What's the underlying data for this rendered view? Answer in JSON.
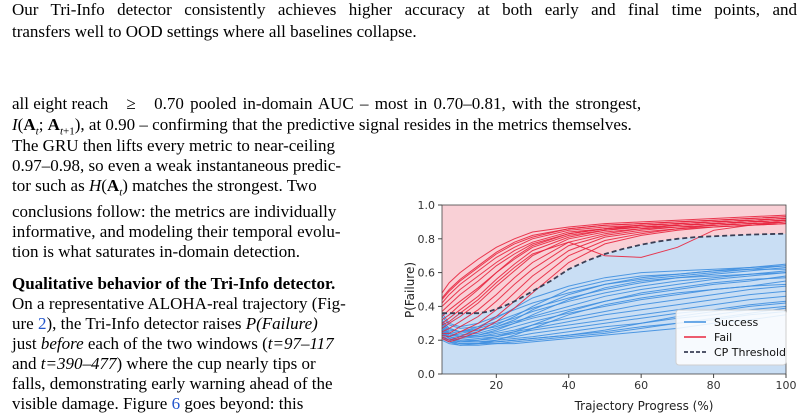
{
  "paper": {
    "top_line1": "Our Tri-Info detector consistently achieves higher accuracy at both early and final time points, and",
    "top_line2": "transfers well to OOD settings where all baselines collapse.",
    "para1_line1_a": "all eight reach",
    "para1_line1_sym": "≥",
    "para1_line1_b": "0.70 pooled in-domain AUC – most in 0.70–0.81, with the strongest,",
    "para1_line2_math": "I(A",
    "para1_line2_rest": "), at 0.90 – confirming that the predictive signal resides in the metrics themselves.",
    "col_lines": [
      "The GRU then lifts every metric to near-ceiling",
      "0.97–0.98, so even a weak instantaneous predic-",
      "tor such as H(A",
      "conclusions follow: the metrics are individually",
      "informative, and modeling their temporal evolu-",
      "tion is what saturates in-domain detection."
    ],
    "col_line3_rest": ") matches the strongest. Two",
    "qual_heading": "Qualitative behavior of the Tri-Info detector.",
    "qual_lines": [
      "On a representative ALOHA-real trajectory (Fig-",
      "ure",
      "), the Tri-Info detector raises",
      "just",
      "before",
      "each of the two windows (",
      "and",
      ") where the cup nearly tips or",
      "falls, demonstrating early warning ahead of the",
      "visible damage. Figure",
      "goes beyond: this"
    ],
    "fig_ref_2": "2",
    "fig_ref_6": "6",
    "pfailure": "P(Failure)",
    "window1": "t=97–117",
    "window2": "t=390–477"
  },
  "chart_data": {
    "type": "line",
    "xlabel": "Trajectory Progress (%)",
    "ylabel": "P(Failure)",
    "xlim": [
      5,
      100
    ],
    "ylim": [
      0,
      1.0
    ],
    "xticks": [
      "20",
      "40",
      "60",
      "80",
      "100"
    ],
    "yticks": [
      "0.0",
      "0.2",
      "0.4",
      "0.6",
      "0.8",
      "1.0"
    ],
    "legend_position": "bottom-right",
    "legend": [
      "Success",
      "Fail",
      "CP Threshold"
    ],
    "colors": {
      "success": "#3f8fe0",
      "fail": "#e8263f",
      "threshold": "#3a3f55",
      "fill_top": "#f9d0d6",
      "fill_bottom": "#c9def4"
    },
    "threshold": {
      "x": [
        5,
        10,
        15,
        18,
        22,
        26,
        30,
        35,
        40,
        45,
        50,
        55,
        60,
        65,
        70,
        75,
        80,
        85,
        90,
        95,
        100
      ],
      "y": [
        0.36,
        0.36,
        0.36,
        0.37,
        0.4,
        0.44,
        0.49,
        0.55,
        0.62,
        0.67,
        0.71,
        0.74,
        0.765,
        0.785,
        0.8,
        0.81,
        0.815,
        0.82,
        0.825,
        0.828,
        0.83
      ]
    },
    "x": [
      5,
      7,
      10,
      15,
      20,
      25,
      30,
      40,
      50,
      60,
      70,
      80,
      90,
      100
    ],
    "series_success": [
      [
        0.36,
        0.3,
        0.28,
        0.3,
        0.34,
        0.38,
        0.42,
        0.48,
        0.53,
        0.56,
        0.58,
        0.6,
        0.62,
        0.64
      ],
      [
        0.34,
        0.29,
        0.27,
        0.28,
        0.31,
        0.35,
        0.39,
        0.45,
        0.5,
        0.54,
        0.57,
        0.59,
        0.61,
        0.63
      ],
      [
        0.32,
        0.27,
        0.25,
        0.27,
        0.3,
        0.33,
        0.37,
        0.43,
        0.48,
        0.52,
        0.55,
        0.57,
        0.59,
        0.61
      ],
      [
        0.3,
        0.25,
        0.24,
        0.26,
        0.28,
        0.31,
        0.34,
        0.4,
        0.46,
        0.5,
        0.53,
        0.56,
        0.58,
        0.6
      ],
      [
        0.29,
        0.24,
        0.23,
        0.24,
        0.27,
        0.3,
        0.33,
        0.38,
        0.43,
        0.47,
        0.5,
        0.53,
        0.55,
        0.58
      ],
      [
        0.28,
        0.24,
        0.22,
        0.23,
        0.25,
        0.28,
        0.31,
        0.36,
        0.4,
        0.44,
        0.47,
        0.5,
        0.52,
        0.55
      ],
      [
        0.27,
        0.23,
        0.22,
        0.22,
        0.24,
        0.26,
        0.29,
        0.33,
        0.37,
        0.41,
        0.44,
        0.47,
        0.5,
        0.52
      ],
      [
        0.26,
        0.22,
        0.21,
        0.22,
        0.23,
        0.25,
        0.27,
        0.31,
        0.35,
        0.38,
        0.41,
        0.44,
        0.47,
        0.49
      ],
      [
        0.25,
        0.22,
        0.2,
        0.21,
        0.22,
        0.24,
        0.26,
        0.29,
        0.32,
        0.35,
        0.38,
        0.41,
        0.44,
        0.46
      ],
      [
        0.25,
        0.21,
        0.2,
        0.2,
        0.21,
        0.22,
        0.24,
        0.27,
        0.3,
        0.33,
        0.36,
        0.38,
        0.41,
        0.43
      ],
      [
        0.24,
        0.21,
        0.19,
        0.19,
        0.2,
        0.21,
        0.22,
        0.25,
        0.28,
        0.3,
        0.33,
        0.35,
        0.38,
        0.4
      ],
      [
        0.23,
        0.2,
        0.19,
        0.19,
        0.19,
        0.2,
        0.21,
        0.23,
        0.25,
        0.28,
        0.3,
        0.32,
        0.35,
        0.37
      ],
      [
        0.3,
        0.26,
        0.25,
        0.28,
        0.33,
        0.39,
        0.45,
        0.52,
        0.57,
        0.6,
        0.61,
        0.62,
        0.63,
        0.64
      ],
      [
        0.27,
        0.24,
        0.23,
        0.25,
        0.29,
        0.34,
        0.4,
        0.5,
        0.55,
        0.58,
        0.59,
        0.61,
        0.62,
        0.62
      ],
      [
        0.26,
        0.23,
        0.22,
        0.23,
        0.26,
        0.3,
        0.35,
        0.44,
        0.51,
        0.55,
        0.57,
        0.58,
        0.59,
        0.6
      ],
      [
        0.22,
        0.2,
        0.18,
        0.18,
        0.19,
        0.2,
        0.21,
        0.23,
        0.26,
        0.3,
        0.34,
        0.37,
        0.4,
        0.42
      ],
      [
        0.21,
        0.19,
        0.18,
        0.18,
        0.18,
        0.19,
        0.2,
        0.22,
        0.24,
        0.27,
        0.3,
        0.33,
        0.36,
        0.39
      ],
      [
        0.22,
        0.19,
        0.17,
        0.18,
        0.2,
        0.23,
        0.27,
        0.35,
        0.41,
        0.45,
        0.48,
        0.5,
        0.52,
        0.53
      ],
      [
        0.2,
        0.18,
        0.17,
        0.17,
        0.18,
        0.18,
        0.19,
        0.21,
        0.23,
        0.25,
        0.27,
        0.3,
        0.32,
        0.35
      ],
      [
        0.24,
        0.21,
        0.19,
        0.2,
        0.22,
        0.25,
        0.29,
        0.37,
        0.43,
        0.48,
        0.51,
        0.54,
        0.56,
        0.57
      ],
      [
        0.31,
        0.27,
        0.25,
        0.26,
        0.28,
        0.32,
        0.38,
        0.47,
        0.53,
        0.57,
        0.59,
        0.61,
        0.63,
        0.65
      ]
    ],
    "series_fail": [
      [
        0.45,
        0.5,
        0.56,
        0.64,
        0.72,
        0.78,
        0.82,
        0.86,
        0.88,
        0.89,
        0.9,
        0.91,
        0.92,
        0.93
      ],
      [
        0.42,
        0.47,
        0.53,
        0.61,
        0.69,
        0.75,
        0.8,
        0.85,
        0.87,
        0.88,
        0.89,
        0.9,
        0.91,
        0.92
      ],
      [
        0.4,
        0.44,
        0.5,
        0.58,
        0.66,
        0.73,
        0.78,
        0.84,
        0.86,
        0.88,
        0.89,
        0.9,
        0.91,
        0.92
      ],
      [
        0.37,
        0.41,
        0.47,
        0.55,
        0.64,
        0.71,
        0.77,
        0.83,
        0.86,
        0.87,
        0.88,
        0.89,
        0.9,
        0.91
      ],
      [
        0.34,
        0.38,
        0.43,
        0.51,
        0.6,
        0.68,
        0.75,
        0.82,
        0.85,
        0.87,
        0.88,
        0.89,
        0.9,
        0.91
      ],
      [
        0.3,
        0.33,
        0.38,
        0.46,
        0.56,
        0.65,
        0.73,
        0.81,
        0.85,
        0.87,
        0.88,
        0.89,
        0.9,
        0.91
      ],
      [
        0.27,
        0.3,
        0.34,
        0.42,
        0.52,
        0.61,
        0.7,
        0.8,
        0.84,
        0.86,
        0.88,
        0.89,
        0.9,
        0.91
      ],
      [
        0.25,
        0.27,
        0.31,
        0.38,
        0.47,
        0.57,
        0.66,
        0.78,
        0.83,
        0.86,
        0.87,
        0.88,
        0.89,
        0.9
      ],
      [
        0.24,
        0.24,
        0.28,
        0.34,
        0.43,
        0.53,
        0.62,
        0.76,
        0.82,
        0.85,
        0.87,
        0.88,
        0.89,
        0.9
      ],
      [
        0.23,
        0.22,
        0.25,
        0.3,
        0.38,
        0.48,
        0.58,
        0.73,
        0.81,
        0.84,
        0.86,
        0.88,
        0.89,
        0.9
      ],
      [
        0.22,
        0.2,
        0.22,
        0.27,
        0.34,
        0.43,
        0.53,
        0.7,
        0.79,
        0.83,
        0.86,
        0.87,
        0.88,
        0.89
      ],
      [
        0.21,
        0.19,
        0.21,
        0.25,
        0.31,
        0.39,
        0.48,
        0.66,
        0.77,
        0.82,
        0.85,
        0.87,
        0.88,
        0.89
      ],
      [
        0.48,
        0.54,
        0.6,
        0.68,
        0.75,
        0.8,
        0.84,
        0.87,
        0.89,
        0.9,
        0.91,
        0.92,
        0.93,
        0.94
      ],
      [
        0.44,
        0.49,
        0.55,
        0.63,
        0.71,
        0.77,
        0.81,
        0.86,
        0.88,
        0.89,
        0.9,
        0.91,
        0.92,
        0.93
      ],
      [
        0.32,
        0.35,
        0.41,
        0.5,
        0.6,
        0.69,
        0.76,
        0.83,
        0.86,
        0.88,
        0.89,
        0.9,
        0.91,
        0.92
      ],
      [
        0.29,
        0.31,
        0.36,
        0.44,
        0.54,
        0.63,
        0.71,
        0.78,
        0.7,
        0.69,
        0.75,
        0.85,
        0.88,
        0.9
      ]
    ]
  }
}
